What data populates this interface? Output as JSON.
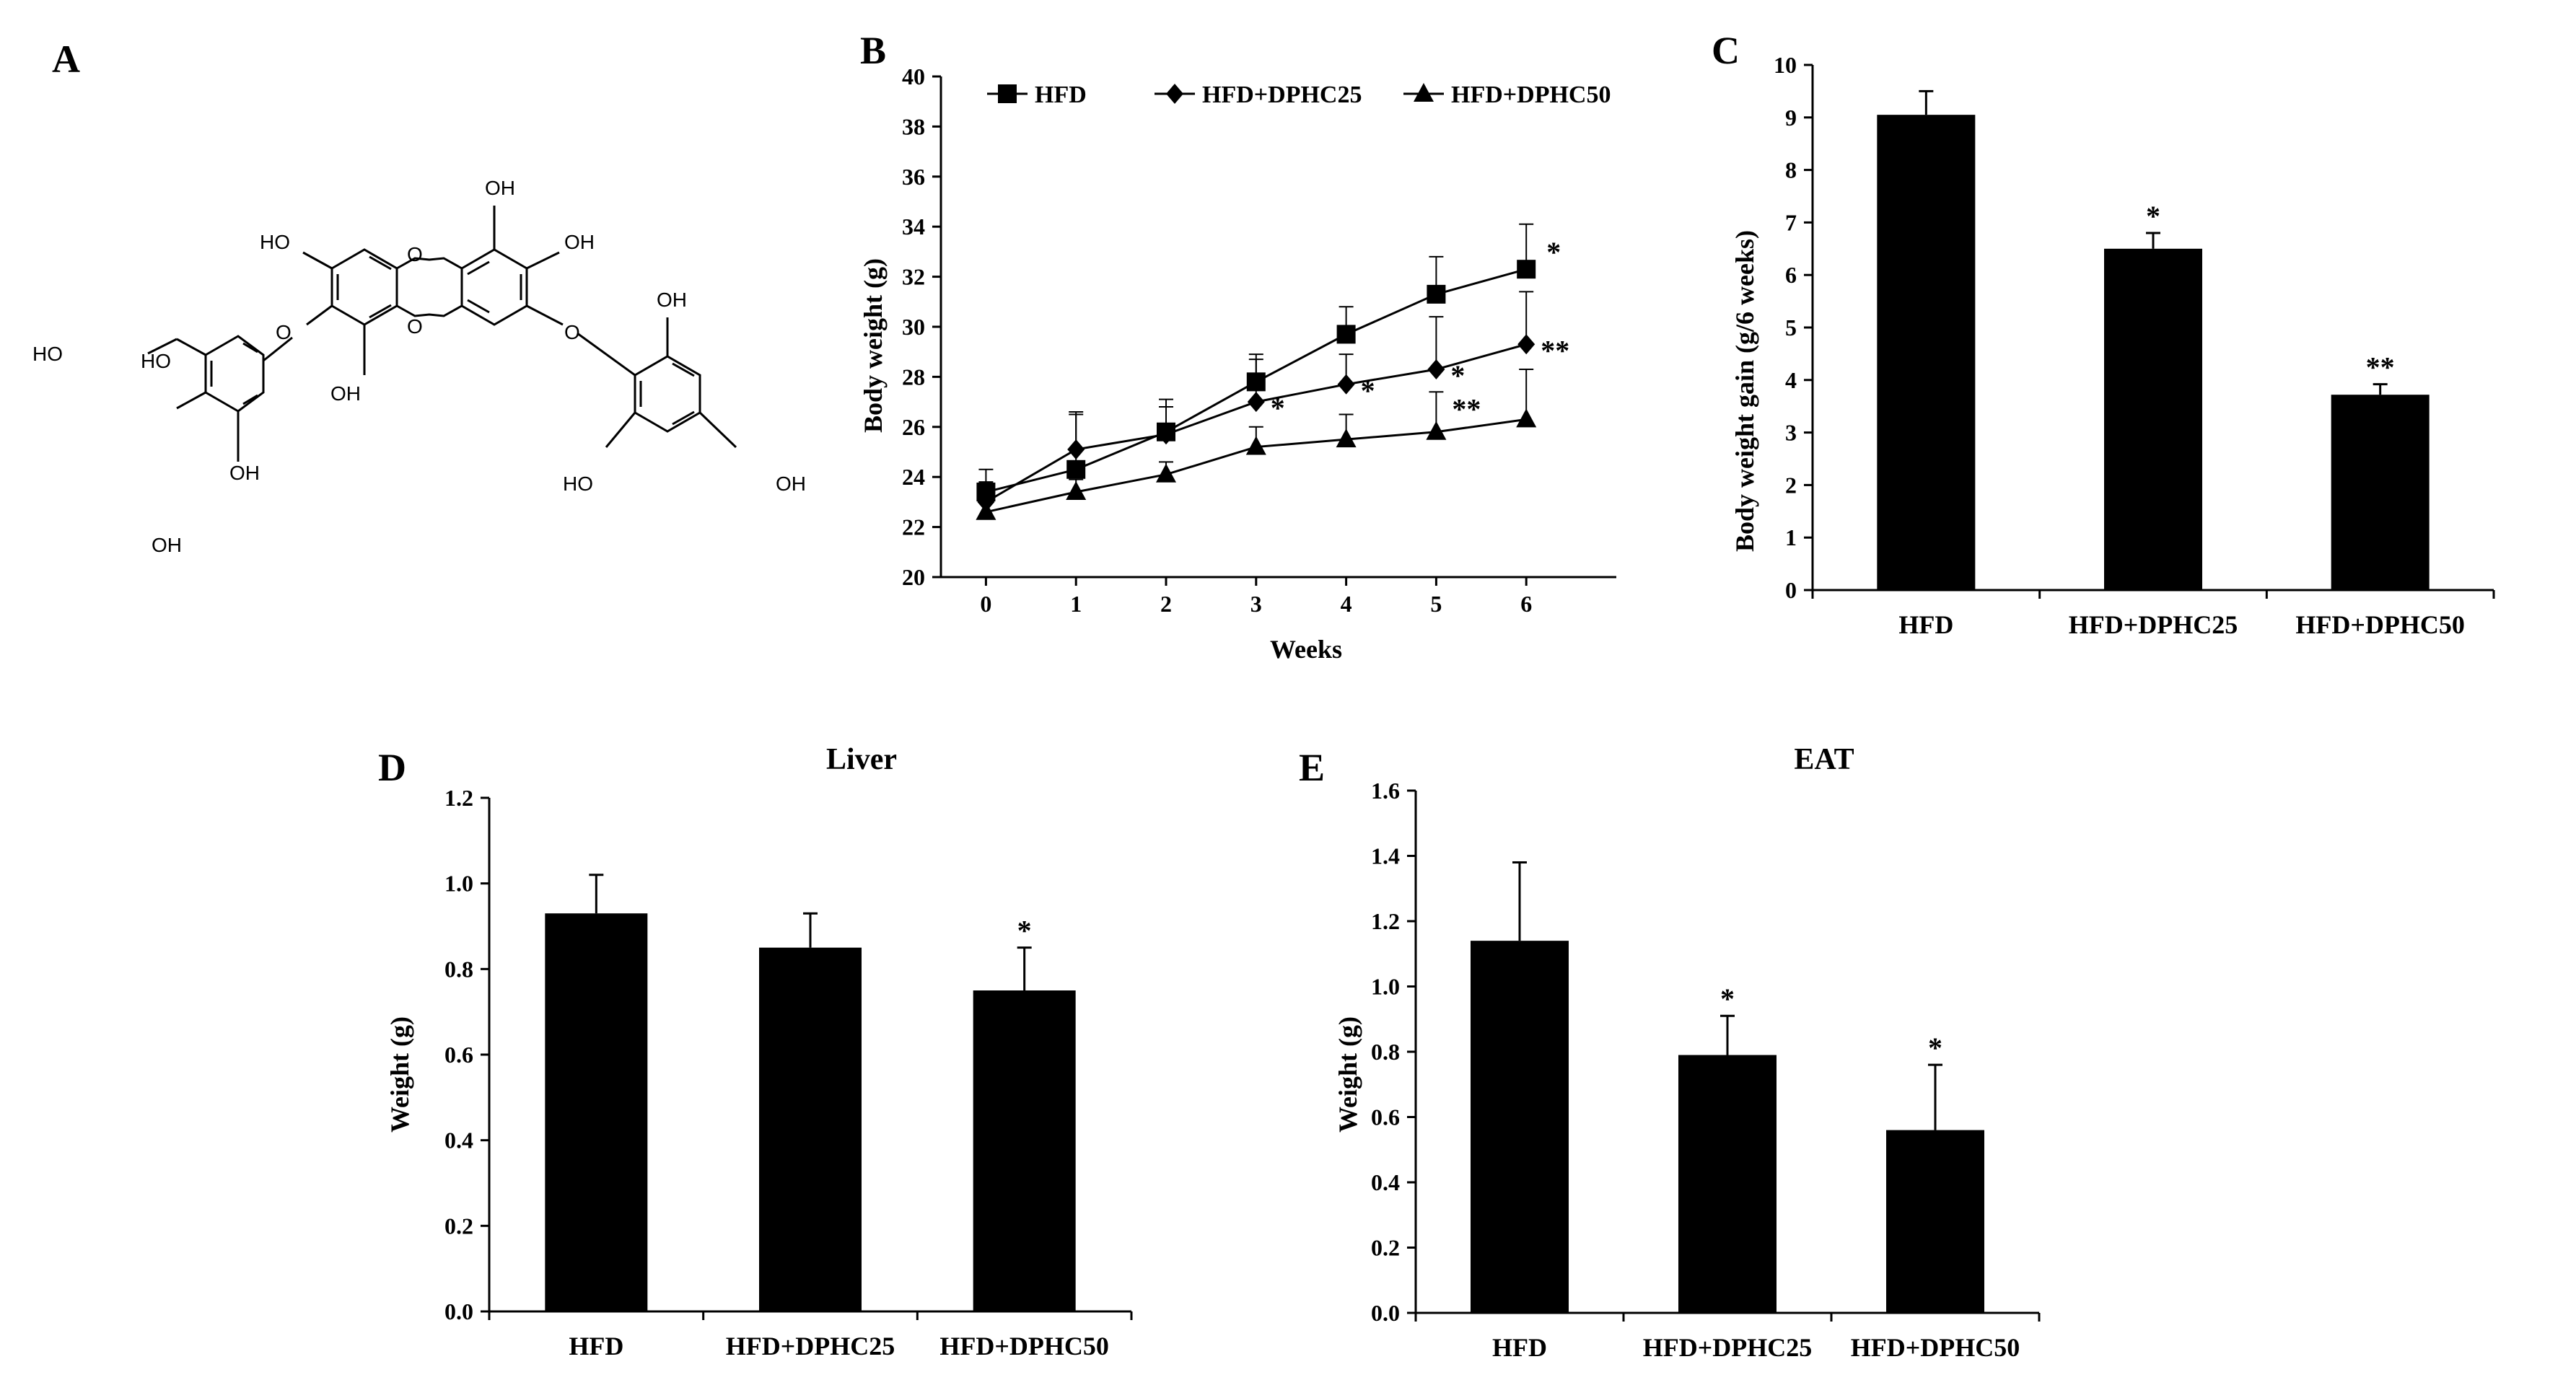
{
  "figure": {
    "panels": [
      "A",
      "B",
      "C",
      "D",
      "E"
    ]
  },
  "structure": {
    "atoms": [
      "OH",
      "OH",
      "HO",
      "OH",
      "OH",
      "HO",
      "OH",
      "HO",
      "HO",
      "OH",
      "OH",
      "O",
      "O",
      "O",
      "O"
    ]
  },
  "chart_data": [
    {
      "panel": "B",
      "type": "line",
      "title": "",
      "xlabel": "Weeks",
      "ylabel": "Body weight (g)",
      "x": [
        0,
        1,
        2,
        3,
        4,
        5,
        6
      ],
      "xlim": [
        -0.5,
        7
      ],
      "ylim": [
        20,
        40
      ],
      "yticks": [
        20,
        22,
        24,
        26,
        28,
        30,
        32,
        34,
        36,
        38,
        40
      ],
      "legend_position": "top",
      "series": [
        {
          "name": "HFD",
          "marker": "square",
          "values": [
            23.4,
            24.3,
            25.8,
            27.8,
            29.7,
            31.3,
            32.3
          ],
          "errors": [
            0.9,
            2.2,
            1.3,
            1.1,
            1.1,
            1.5,
            1.8
          ],
          "significance": [
            "",
            "",
            "",
            "",
            "",
            "",
            "*"
          ]
        },
        {
          "name": "HFD+DPHC25",
          "marker": "diamond",
          "values": [
            23.0,
            25.1,
            25.7,
            27.0,
            27.7,
            28.3,
            29.3
          ],
          "errors": [
            0.8,
            1.5,
            1.1,
            1.7,
            1.2,
            2.1,
            2.1
          ],
          "significance": [
            "",
            "",
            "",
            "*",
            "*",
            "*",
            "**"
          ]
        },
        {
          "name": "HFD+DPHC50",
          "marker": "triangle",
          "values": [
            22.6,
            23.4,
            24.1,
            25.2,
            25.5,
            25.8,
            26.3
          ],
          "errors": [
            0.4,
            0.5,
            0.5,
            0.8,
            1.0,
            1.6,
            2.0
          ],
          "significance": [
            "",
            "",
            "",
            "",
            "",
            "**",
            ""
          ]
        }
      ]
    },
    {
      "panel": "C",
      "type": "bar",
      "title": "",
      "xlabel": "",
      "ylabel": "Body weight gain (g/6 weeks)",
      "categories": [
        "HFD",
        "HFD+DPHC25",
        "HFD+DPHC50"
      ],
      "values": [
        9.05,
        6.5,
        3.72
      ],
      "errors": [
        0.45,
        0.3,
        0.2
      ],
      "significance": [
        "",
        "*",
        "**"
      ],
      "ylim": [
        0,
        10
      ],
      "yticks": [
        0,
        1,
        2,
        3,
        4,
        5,
        6,
        7,
        8,
        9,
        10
      ]
    },
    {
      "panel": "D",
      "type": "bar",
      "title": "Liver",
      "xlabel": "",
      "ylabel": "Weight (g)",
      "categories": [
        "HFD",
        "HFD+DPHC25",
        "HFD+DPHC50"
      ],
      "values": [
        0.93,
        0.85,
        0.75
      ],
      "errors": [
        0.09,
        0.08,
        0.1
      ],
      "significance": [
        "",
        "",
        "*"
      ],
      "ylim": [
        0,
        1.2
      ],
      "yticks": [
        "0.0",
        "0.2",
        "0.4",
        "0.6",
        "0.8",
        "1.0",
        "1.2"
      ]
    },
    {
      "panel": "E",
      "type": "bar",
      "title": "EAT",
      "xlabel": "",
      "ylabel": "Weight (g)",
      "categories": [
        "HFD",
        "HFD+DPHC25",
        "HFD+DPHC50"
      ],
      "values": [
        1.14,
        0.79,
        0.56
      ],
      "errors": [
        0.24,
        0.12,
        0.2
      ],
      "significance": [
        "",
        "*",
        "*"
      ],
      "ylim": [
        0,
        1.6
      ],
      "yticks": [
        "0.0",
        "0.2",
        "0.4",
        "0.6",
        "0.8",
        "1.0",
        "1.2",
        "1.4",
        "1.6"
      ]
    }
  ]
}
